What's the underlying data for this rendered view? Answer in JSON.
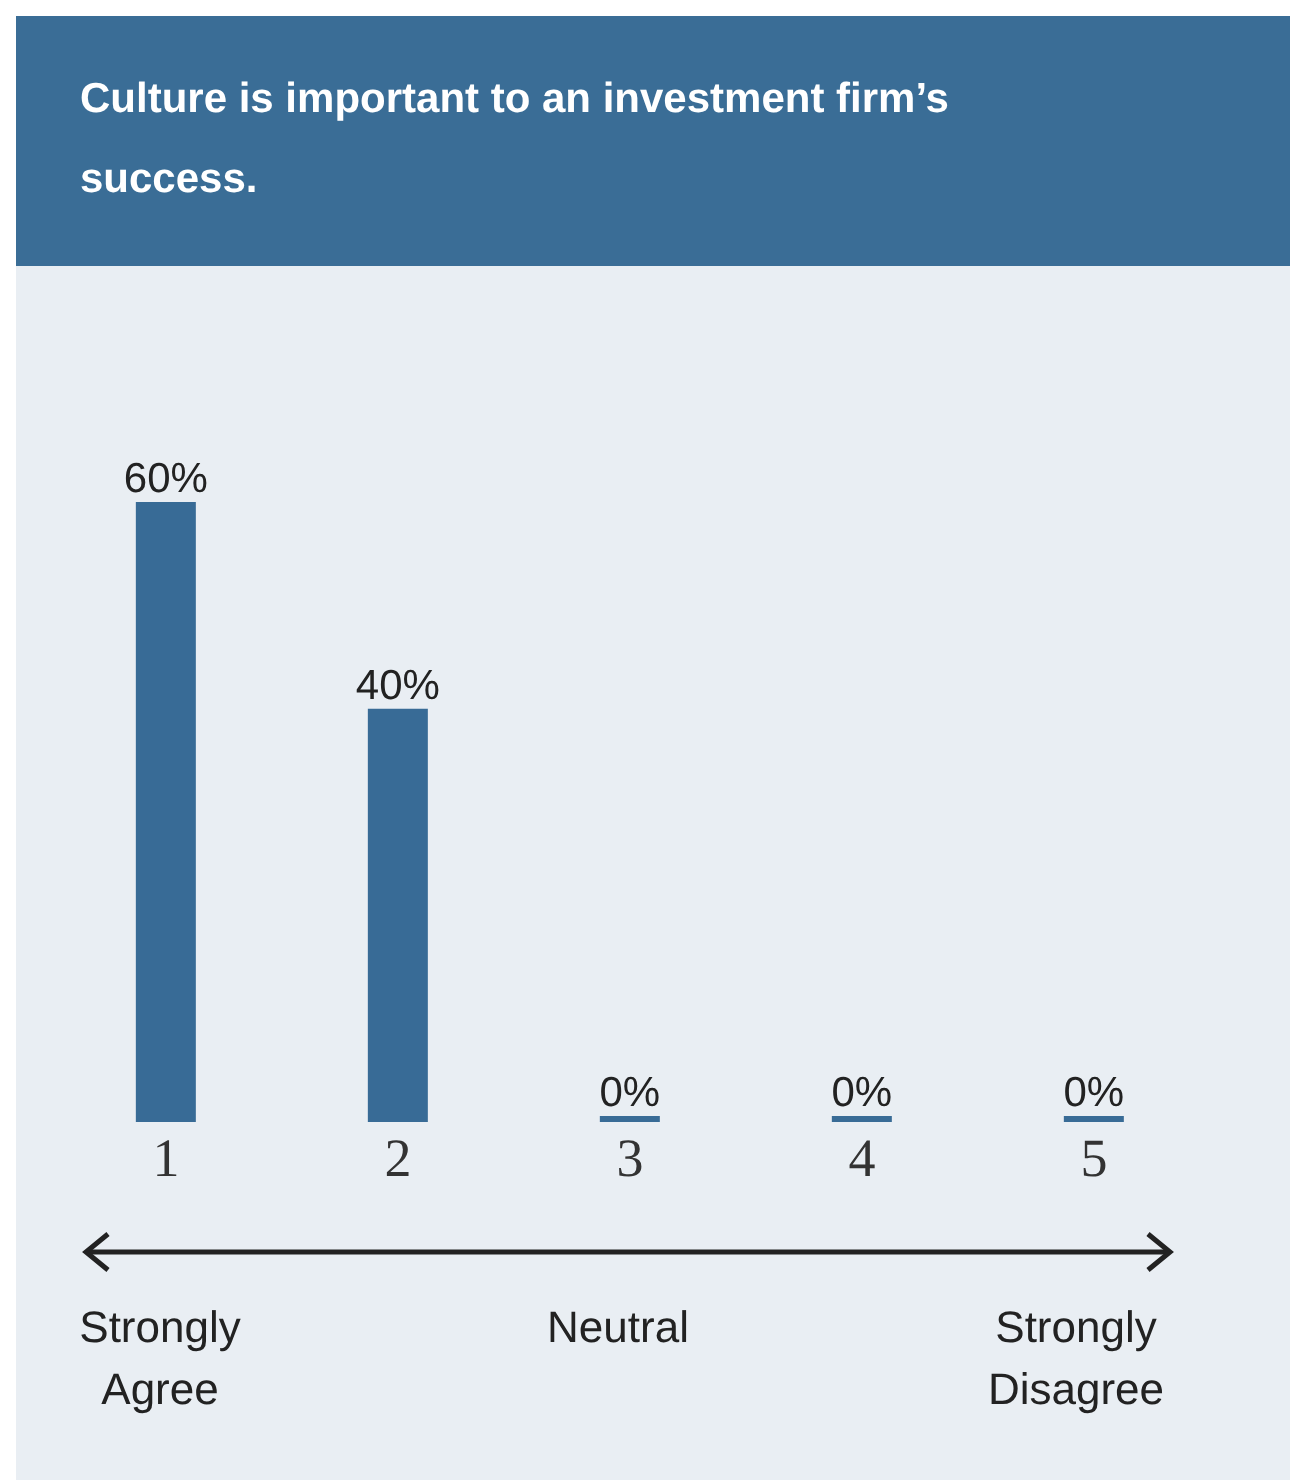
{
  "chart_data": {
    "type": "bar",
    "title": "Culture is important to an investment firm’s success.",
    "categories": [
      "1",
      "2",
      "3",
      "4",
      "5"
    ],
    "values": [
      60,
      40,
      0,
      0,
      0
    ],
    "value_labels": [
      "60%",
      "40%",
      "0%",
      "0%",
      "0%"
    ],
    "color": "#386b96",
    "annotations": [
      "Strongly Agree",
      "Neutral",
      "Strongly Disagree"
    ]
  }
}
